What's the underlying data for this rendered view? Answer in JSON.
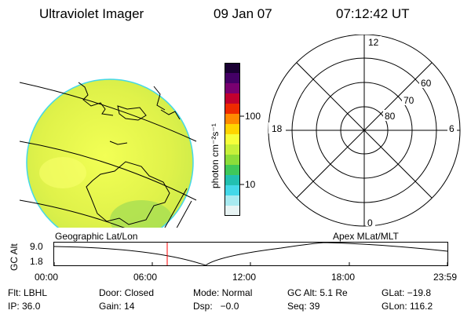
{
  "header": {
    "instrument": "Ultraviolet Imager",
    "date": "09 Jan 07",
    "time": "07:12:42 UT"
  },
  "colorbar": {
    "unit_label": "photon cm⁻²s⁻¹",
    "tick_100": "100",
    "tick_10": "10",
    "colors": [
      "#1a0033",
      "#440066",
      "#7a0070",
      "#c2002f",
      "#ee2a00",
      "#ff8a00",
      "#ffd400",
      "#f6ff3a",
      "#c7f03a",
      "#8cdd3a",
      "#3fc85a",
      "#22c0b0",
      "#44d8e8",
      "#a8eaf0",
      "#e8f4f4"
    ]
  },
  "polar_plot": {
    "mlt_labels": {
      "top": "12",
      "left": "18",
      "right": "6",
      "bottom": "0"
    },
    "lat_labels": [
      "60",
      "70",
      "80"
    ]
  },
  "timeline": {
    "left_label": "Geographic Lat/Lon",
    "right_label": "Apex MLat/MLT",
    "y_axis_label": "GC Alt",
    "y_max": "9.0",
    "y_min": "1.8",
    "x_ticks": [
      "00:00",
      "06:00",
      "12:00",
      "18:00",
      "23:59"
    ],
    "marker_color": "#ff0000"
  },
  "status": {
    "row1": [
      {
        "label": "Flt: LBHL"
      },
      {
        "label": "Door: Closed"
      },
      {
        "label": "Mode: Normal"
      },
      {
        "label": "GC Alt: 5.1 Re"
      },
      {
        "label": "GLat: −19.8"
      }
    ],
    "row2": [
      {
        "label": "IP: 36.0"
      },
      {
        "label": "Gain: 14"
      },
      {
        "label": "Dsp:   −0.0"
      },
      {
        "label": "Seq: 39"
      },
      {
        "label": "GLon: 116.2"
      }
    ]
  }
}
